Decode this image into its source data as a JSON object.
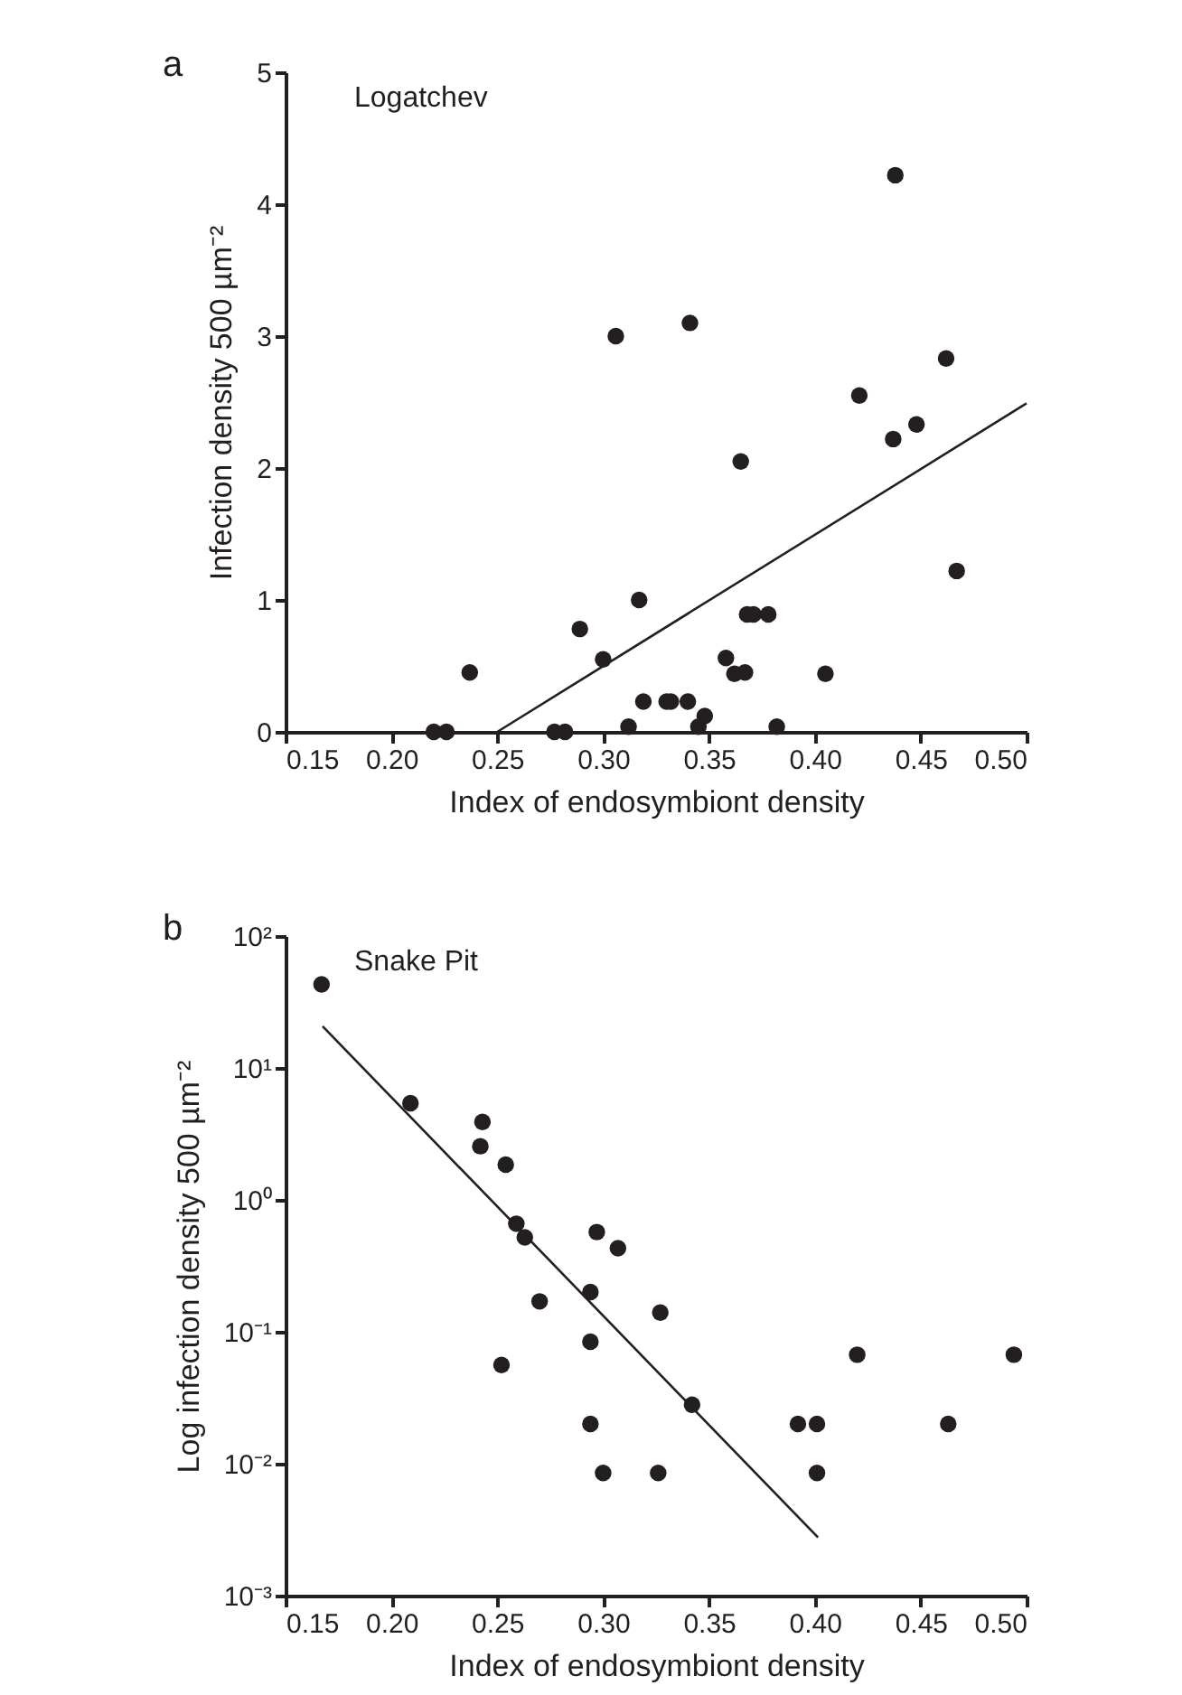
{
  "chart_data": [
    {
      "type": "scatter",
      "title": "Logatchev",
      "xlabel": "Index of endosymbiont density",
      "ylabel": "Infection density 500 µm⁻²",
      "annotations": [
        "a"
      ],
      "xlim": [
        0.15,
        0.5
      ],
      "xticks": [
        {
          "value": 0.15,
          "label": "0.15"
        },
        {
          "value": 0.2,
          "label": "0.20"
        },
        {
          "value": 0.25,
          "label": "0.25"
        },
        {
          "value": 0.3,
          "label": "0.30"
        },
        {
          "value": 0.35,
          "label": "0.35"
        },
        {
          "value": 0.4,
          "label": "0.40"
        },
        {
          "value": 0.45,
          "label": "0.45"
        },
        {
          "value": 0.5,
          "label": "0.50"
        }
      ],
      "ylim": [
        0,
        5
      ],
      "yticks": [
        0,
        1,
        2,
        3,
        4,
        5
      ],
      "series": [
        {
          "color": "#231f20",
          "marker": "circle",
          "x": [
            0.22,
            0.226,
            0.237,
            0.277,
            0.282,
            0.289,
            0.3,
            0.306,
            0.312,
            0.317,
            0.319,
            0.33,
            0.332,
            0.34,
            0.341,
            0.345,
            0.348,
            0.358,
            0.362,
            0.365,
            0.367,
            0.368,
            0.371,
            0.378,
            0.382,
            0.405,
            0.421,
            0.437,
            0.438,
            0.448,
            0.462,
            0.467
          ],
          "values": [
            0,
            0,
            0.45,
            0,
            0,
            0.78,
            0.55,
            3.0,
            0.04,
            1.0,
            0.23,
            0.23,
            0.23,
            0.23,
            3.1,
            0.04,
            0.12,
            0.56,
            0.44,
            2.05,
            0.45,
            0.89,
            0.89,
            0.89,
            0.04,
            0.44,
            2.55,
            2.22,
            4.22,
            2.33,
            2.83,
            1.22
          ]
        },
        {
          "type": "line",
          "color": "#231f20",
          "marker": "none",
          "x": [
            0.25,
            0.5
          ],
          "values": [
            0,
            2.49
          ]
        }
      ]
    },
    {
      "type": "scatter",
      "title": "Snake Pit",
      "xlabel": "Index of endosymbiont density",
      "ylabel": "Log infection density 500 µm⁻²",
      "annotations": [
        "b"
      ],
      "log": "y",
      "xlim": [
        0.15,
        0.5
      ],
      "xticks": [
        {
          "value": 0.15,
          "label": "0.15"
        },
        {
          "value": 0.2,
          "label": "0.20"
        },
        {
          "value": 0.25,
          "label": "0.25"
        },
        {
          "value": 0.3,
          "label": "0.30"
        },
        {
          "value": 0.35,
          "label": "0.35"
        },
        {
          "value": 0.4,
          "label": "0.40"
        },
        {
          "value": 0.45,
          "label": "0.45"
        },
        {
          "value": 0.5,
          "label": "0.50"
        }
      ],
      "ylim": [
        0.001,
        100
      ],
      "yticks": [
        {
          "value": 0.001,
          "label": "10⁻³"
        },
        {
          "value": 0.01,
          "label": "10⁻²"
        },
        {
          "value": 0.1,
          "label": "10⁻¹"
        },
        {
          "value": 1,
          "label": "10⁰"
        },
        {
          "value": 10,
          "label": "10¹"
        },
        {
          "value": 100,
          "label": "10²"
        }
      ],
      "series": [
        {
          "color": "#231f20",
          "marker": "circle",
          "x": [
            0.167,
            0.209,
            0.243,
            0.242,
            0.252,
            0.254,
            0.259,
            0.263,
            0.27,
            0.294,
            0.294,
            0.294,
            0.297,
            0.3,
            0.307,
            0.326,
            0.327,
            0.342,
            0.392,
            0.401,
            0.401,
            0.42,
            0.463,
            0.494
          ],
          "values": [
            43,
            5.4,
            3.9,
            2.55,
            0.056,
            1.85,
            0.66,
            0.52,
            0.17,
            0.2,
            0.084,
            0.02,
            0.57,
            0.0085,
            0.43,
            0.0085,
            0.14,
            0.028,
            0.02,
            0.02,
            0.0085,
            0.067,
            0.02,
            0.067
          ]
        },
        {
          "type": "line",
          "color": "#231f20",
          "marker": "none",
          "x": [
            0.1675,
            0.4015
          ],
          "values": [
            20.7,
            0.00276
          ]
        }
      ]
    }
  ]
}
